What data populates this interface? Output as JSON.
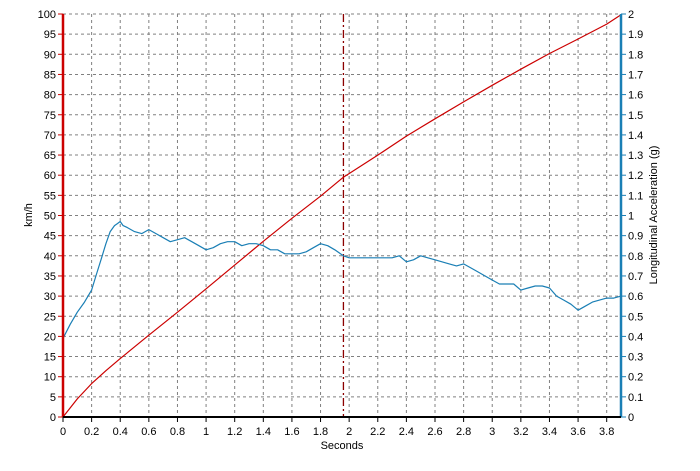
{
  "colors": {
    "left_axis": "#cc0000",
    "right_axis": "#1a7fb5",
    "speed_series": "#cc0000",
    "accel_series": "#1a7fb5",
    "grid": "#808080",
    "marker": "#8b0000",
    "plot_background": "#ffffff"
  },
  "chart_data": {
    "type": "line",
    "xlabel": "Seconds",
    "ylabel_left": "km/h",
    "ylabel_right": "Longitudinal Acceleration (g)",
    "xlim": [
      0,
      3.9
    ],
    "ylim_left": [
      0,
      100
    ],
    "ylim_right": [
      0,
      2
    ],
    "grid": true,
    "x_ticks": [
      "0",
      "0.2",
      "0.4",
      "0.6",
      "0.8",
      "1",
      "1.2",
      "1.4",
      "1.6",
      "1.8",
      "2",
      "2.2",
      "2.4",
      "2.6",
      "2.8",
      "3",
      "3.2",
      "3.4",
      "3.6",
      "3.8"
    ],
    "y_left_ticks": [
      "0",
      "5",
      "10",
      "15",
      "20",
      "25",
      "30",
      "35",
      "40",
      "45",
      "50",
      "55",
      "60",
      "65",
      "70",
      "75",
      "80",
      "85",
      "90",
      "95",
      "100"
    ],
    "y_right_ticks": [
      "0",
      "0.1",
      "0.2",
      "0.3",
      "0.4",
      "0.5",
      "0.6",
      "0.7",
      "0.8",
      "0.9",
      "1",
      "1.1",
      "1.2",
      "1.3",
      "1.4",
      "1.5",
      "1.6",
      "1.7",
      "1.8",
      "1.9",
      "2"
    ],
    "marker_x": 1.96,
    "series": [
      {
        "axis": "left",
        "color": "#cc0000",
        "x": [
          0,
          0.1,
          0.2,
          0.3,
          0.4,
          0.6,
          0.8,
          1.0,
          1.2,
          1.4,
          1.6,
          1.8,
          1.96,
          2.2,
          2.4,
          2.6,
          2.8,
          3.0,
          3.2,
          3.4,
          3.6,
          3.8,
          3.9
        ],
        "values": [
          0,
          4.5,
          8.3,
          11.5,
          14.5,
          20.3,
          26.0,
          31.8,
          37.7,
          43.6,
          49.3,
          54.8,
          59.5,
          65.0,
          69.7,
          74.0,
          78.2,
          82.3,
          86.3,
          90.2,
          93.8,
          97.5,
          99.8
        ]
      },
      {
        "axis": "right",
        "color": "#1a7fb5",
        "x": [
          0,
          0.05,
          0.1,
          0.15,
          0.2,
          0.23,
          0.27,
          0.3,
          0.33,
          0.36,
          0.38,
          0.4,
          0.42,
          0.45,
          0.5,
          0.55,
          0.6,
          0.65,
          0.7,
          0.75,
          0.8,
          0.85,
          0.9,
          0.95,
          1.0,
          1.05,
          1.1,
          1.15,
          1.2,
          1.25,
          1.3,
          1.35,
          1.4,
          1.45,
          1.5,
          1.55,
          1.6,
          1.65,
          1.7,
          1.75,
          1.8,
          1.85,
          1.9,
          1.96,
          2.0,
          2.1,
          2.2,
          2.3,
          2.35,
          2.4,
          2.45,
          2.5,
          2.55,
          2.6,
          2.7,
          2.75,
          2.8,
          2.85,
          2.9,
          2.95,
          3.0,
          3.05,
          3.1,
          3.15,
          3.2,
          3.25,
          3.3,
          3.35,
          3.4,
          3.45,
          3.5,
          3.55,
          3.6,
          3.65,
          3.7,
          3.75,
          3.8,
          3.85,
          3.9
        ],
        "values": [
          0.39,
          0.46,
          0.52,
          0.57,
          0.63,
          0.7,
          0.79,
          0.86,
          0.92,
          0.95,
          0.96,
          0.97,
          0.95,
          0.94,
          0.92,
          0.91,
          0.93,
          0.91,
          0.89,
          0.87,
          0.88,
          0.89,
          0.87,
          0.85,
          0.83,
          0.84,
          0.86,
          0.87,
          0.87,
          0.85,
          0.86,
          0.86,
          0.85,
          0.83,
          0.83,
          0.81,
          0.81,
          0.81,
          0.82,
          0.84,
          0.86,
          0.85,
          0.83,
          0.8,
          0.79,
          0.79,
          0.79,
          0.79,
          0.8,
          0.77,
          0.78,
          0.8,
          0.79,
          0.78,
          0.76,
          0.75,
          0.76,
          0.74,
          0.72,
          0.7,
          0.68,
          0.66,
          0.66,
          0.66,
          0.63,
          0.64,
          0.65,
          0.65,
          0.64,
          0.6,
          0.58,
          0.56,
          0.53,
          0.55,
          0.57,
          0.58,
          0.59,
          0.59,
          0.6
        ]
      }
    ]
  }
}
